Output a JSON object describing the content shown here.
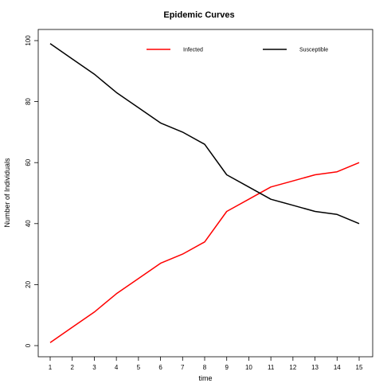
{
  "chart_data": {
    "type": "line",
    "title": "Epidemic Curves",
    "xlabel": "time",
    "ylabel": "Number of Individuals",
    "x": [
      1,
      2,
      3,
      4,
      5,
      6,
      7,
      8,
      9,
      10,
      11,
      12,
      13,
      14,
      15
    ],
    "xlim": [
      1,
      15
    ],
    "ylim": [
      0,
      100
    ],
    "xticks": [
      1,
      2,
      3,
      4,
      5,
      6,
      7,
      8,
      9,
      10,
      11,
      12,
      13,
      14,
      15
    ],
    "yticks": [
      0,
      20,
      40,
      60,
      80,
      100
    ],
    "grid": false,
    "legend_position": "top",
    "series": [
      {
        "name": "Infected",
        "color": "#ff0000",
        "values": [
          1,
          6,
          11,
          17,
          22,
          27,
          30,
          34,
          44,
          48,
          52,
          54,
          56,
          57,
          60
        ]
      },
      {
        "name": "Susceptible",
        "color": "#000000",
        "values": [
          99,
          94,
          89,
          83,
          78,
          73,
          70,
          66,
          56,
          52,
          48,
          46,
          44,
          43,
          40
        ]
      }
    ]
  }
}
